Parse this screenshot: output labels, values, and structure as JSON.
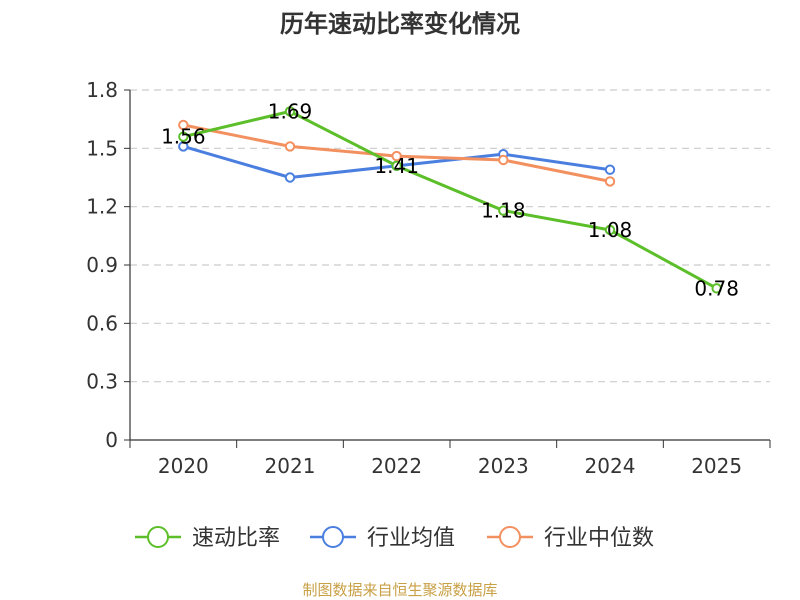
{
  "chart_data": {
    "type": "line",
    "title": "历年速动比率变化情况",
    "categories": [
      "2020",
      "2021",
      "2022",
      "2023",
      "2024",
      "2025"
    ],
    "y_ticks": [
      "0",
      "0.3",
      "0.6",
      "0.9",
      "1.2",
      "1.5",
      "1.8"
    ],
    "ylim": [
      0,
      1.8
    ],
    "grid": true,
    "legend_position": "bottom-center",
    "series": [
      {
        "name": "速动比率",
        "color": "#5cbf2a",
        "values": [
          1.56,
          1.69,
          1.41,
          1.18,
          1.08,
          0.78
        ],
        "labels": [
          "1.56",
          "1.69",
          "1.41",
          "1.18",
          "1.08",
          "0.78"
        ]
      },
      {
        "name": "行业均值",
        "color": "#4a7fe0",
        "values": [
          1.51,
          1.35,
          1.41,
          1.47,
          1.39,
          null
        ]
      },
      {
        "name": "行业中位数",
        "color": "#f39060",
        "values": [
          1.62,
          1.51,
          1.46,
          1.44,
          1.33,
          null
        ]
      }
    ]
  },
  "source": "制图数据来自恒生聚源数据库"
}
